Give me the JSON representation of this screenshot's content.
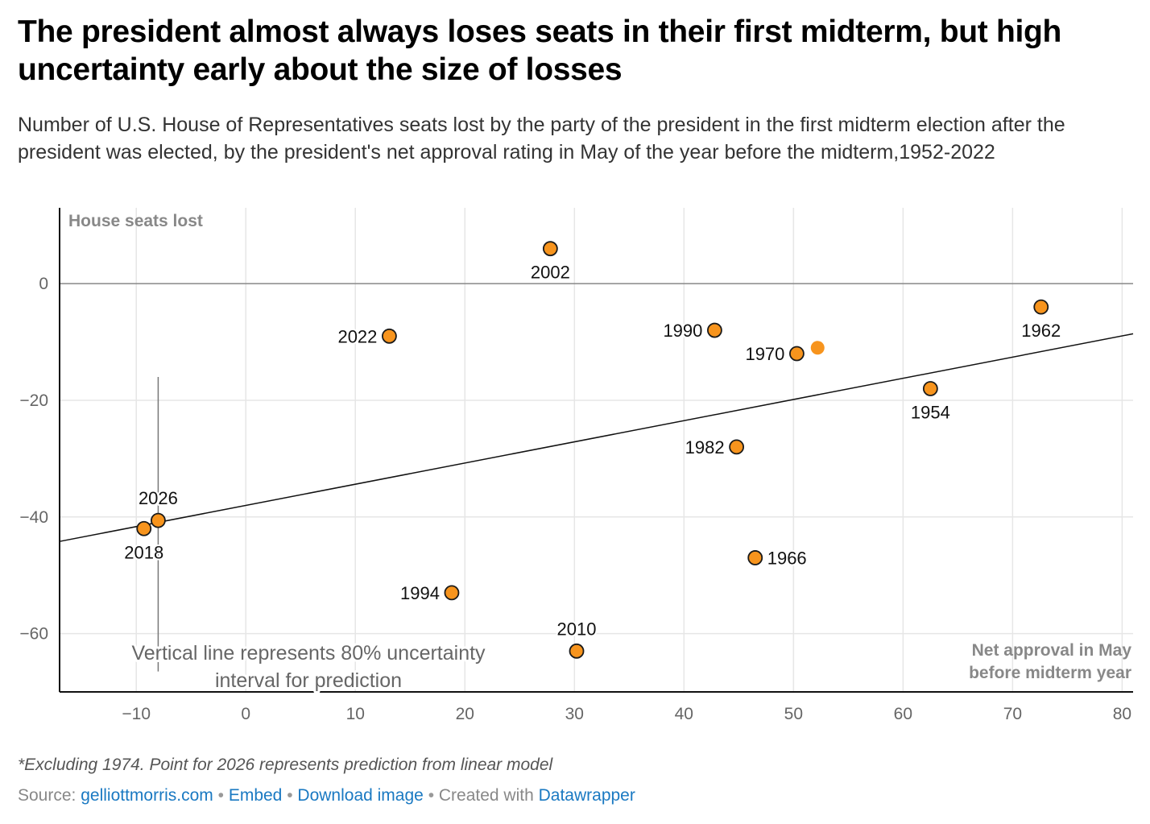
{
  "header": {
    "title": "The president almost always loses seats in their first midterm, but high uncertainty early about the size of losses",
    "subtitle": "Number of U.S. House of Representatives seats lost by the party of the president in the first midterm election after the president was elected, by the president's net approval rating in May of the year before the midterm,1952-2022"
  },
  "chart_data": {
    "type": "scatter",
    "ylabel": "House seats lost",
    "xlabel_lines": [
      "Net approval in May",
      "before midterm year"
    ],
    "xlim": [
      -17,
      81
    ],
    "ylim": [
      -70,
      13
    ],
    "xticks": [
      -10,
      0,
      10,
      20,
      30,
      40,
      50,
      60,
      70,
      80
    ],
    "xtick_labels": [
      "−10",
      "0",
      "10",
      "20",
      "30",
      "40",
      "50",
      "60",
      "70",
      "80"
    ],
    "yticks": [
      0,
      -20,
      -40,
      -60
    ],
    "ytick_labels": [
      "0",
      "−20",
      "−40",
      "−60"
    ],
    "grid": true,
    "colors": {
      "point": "#f7941d",
      "point_stroke": "#1a1a1a",
      "trend": "#111111",
      "zero_line": "#888888",
      "grid": "#e6e6e6"
    },
    "points": [
      {
        "label": "2002",
        "x": 27.8,
        "y": 6,
        "label_pos": "below"
      },
      {
        "label": "2022",
        "x": 13.1,
        "y": -9,
        "label_pos": "left"
      },
      {
        "label": "1990",
        "x": 42.8,
        "y": -8,
        "label_pos": "left"
      },
      {
        "label": "1970",
        "x": 50.3,
        "y": -12,
        "label_pos": "left"
      },
      {
        "label": "1962",
        "x": 72.6,
        "y": -4,
        "label_pos": "below"
      },
      {
        "label": "1954",
        "x": 62.5,
        "y": -18,
        "label_pos": "below"
      },
      {
        "label": "1982",
        "x": 44.8,
        "y": -28,
        "label_pos": "left"
      },
      {
        "label": "2018",
        "x": -9.3,
        "y": -42,
        "label_pos": "below"
      },
      {
        "label": "2026",
        "x": -8.0,
        "y": -40.6,
        "label_pos": "above"
      },
      {
        "label": "1966",
        "x": 46.5,
        "y": -47,
        "label_pos": "right"
      },
      {
        "label": "1994",
        "x": 18.8,
        "y": -53,
        "label_pos": "left"
      },
      {
        "label": "2010",
        "x": 30.2,
        "y": -63,
        "label_pos": "above"
      }
    ],
    "extra_point": {
      "x": 52.2,
      "y": -11
    },
    "trend_line": {
      "x": [
        -17,
        81
      ],
      "y": [
        -44.2,
        -8.6
      ]
    },
    "uncertainty_interval": {
      "x": -8.0,
      "y_low": -66.5,
      "y_high": -16
    },
    "annotation_lines": [
      "Vertical line represents 80% uncertainty",
      "interval for prediction"
    ]
  },
  "footer": {
    "note": "*Excluding 1974. Point for 2026 represents prediction from linear model",
    "source_prefix": "Source: ",
    "source_link": "gelliottmorris.com",
    "embed": "Embed",
    "download": "Download image",
    "created_prefix": "Created with ",
    "created_link": "Datawrapper"
  }
}
